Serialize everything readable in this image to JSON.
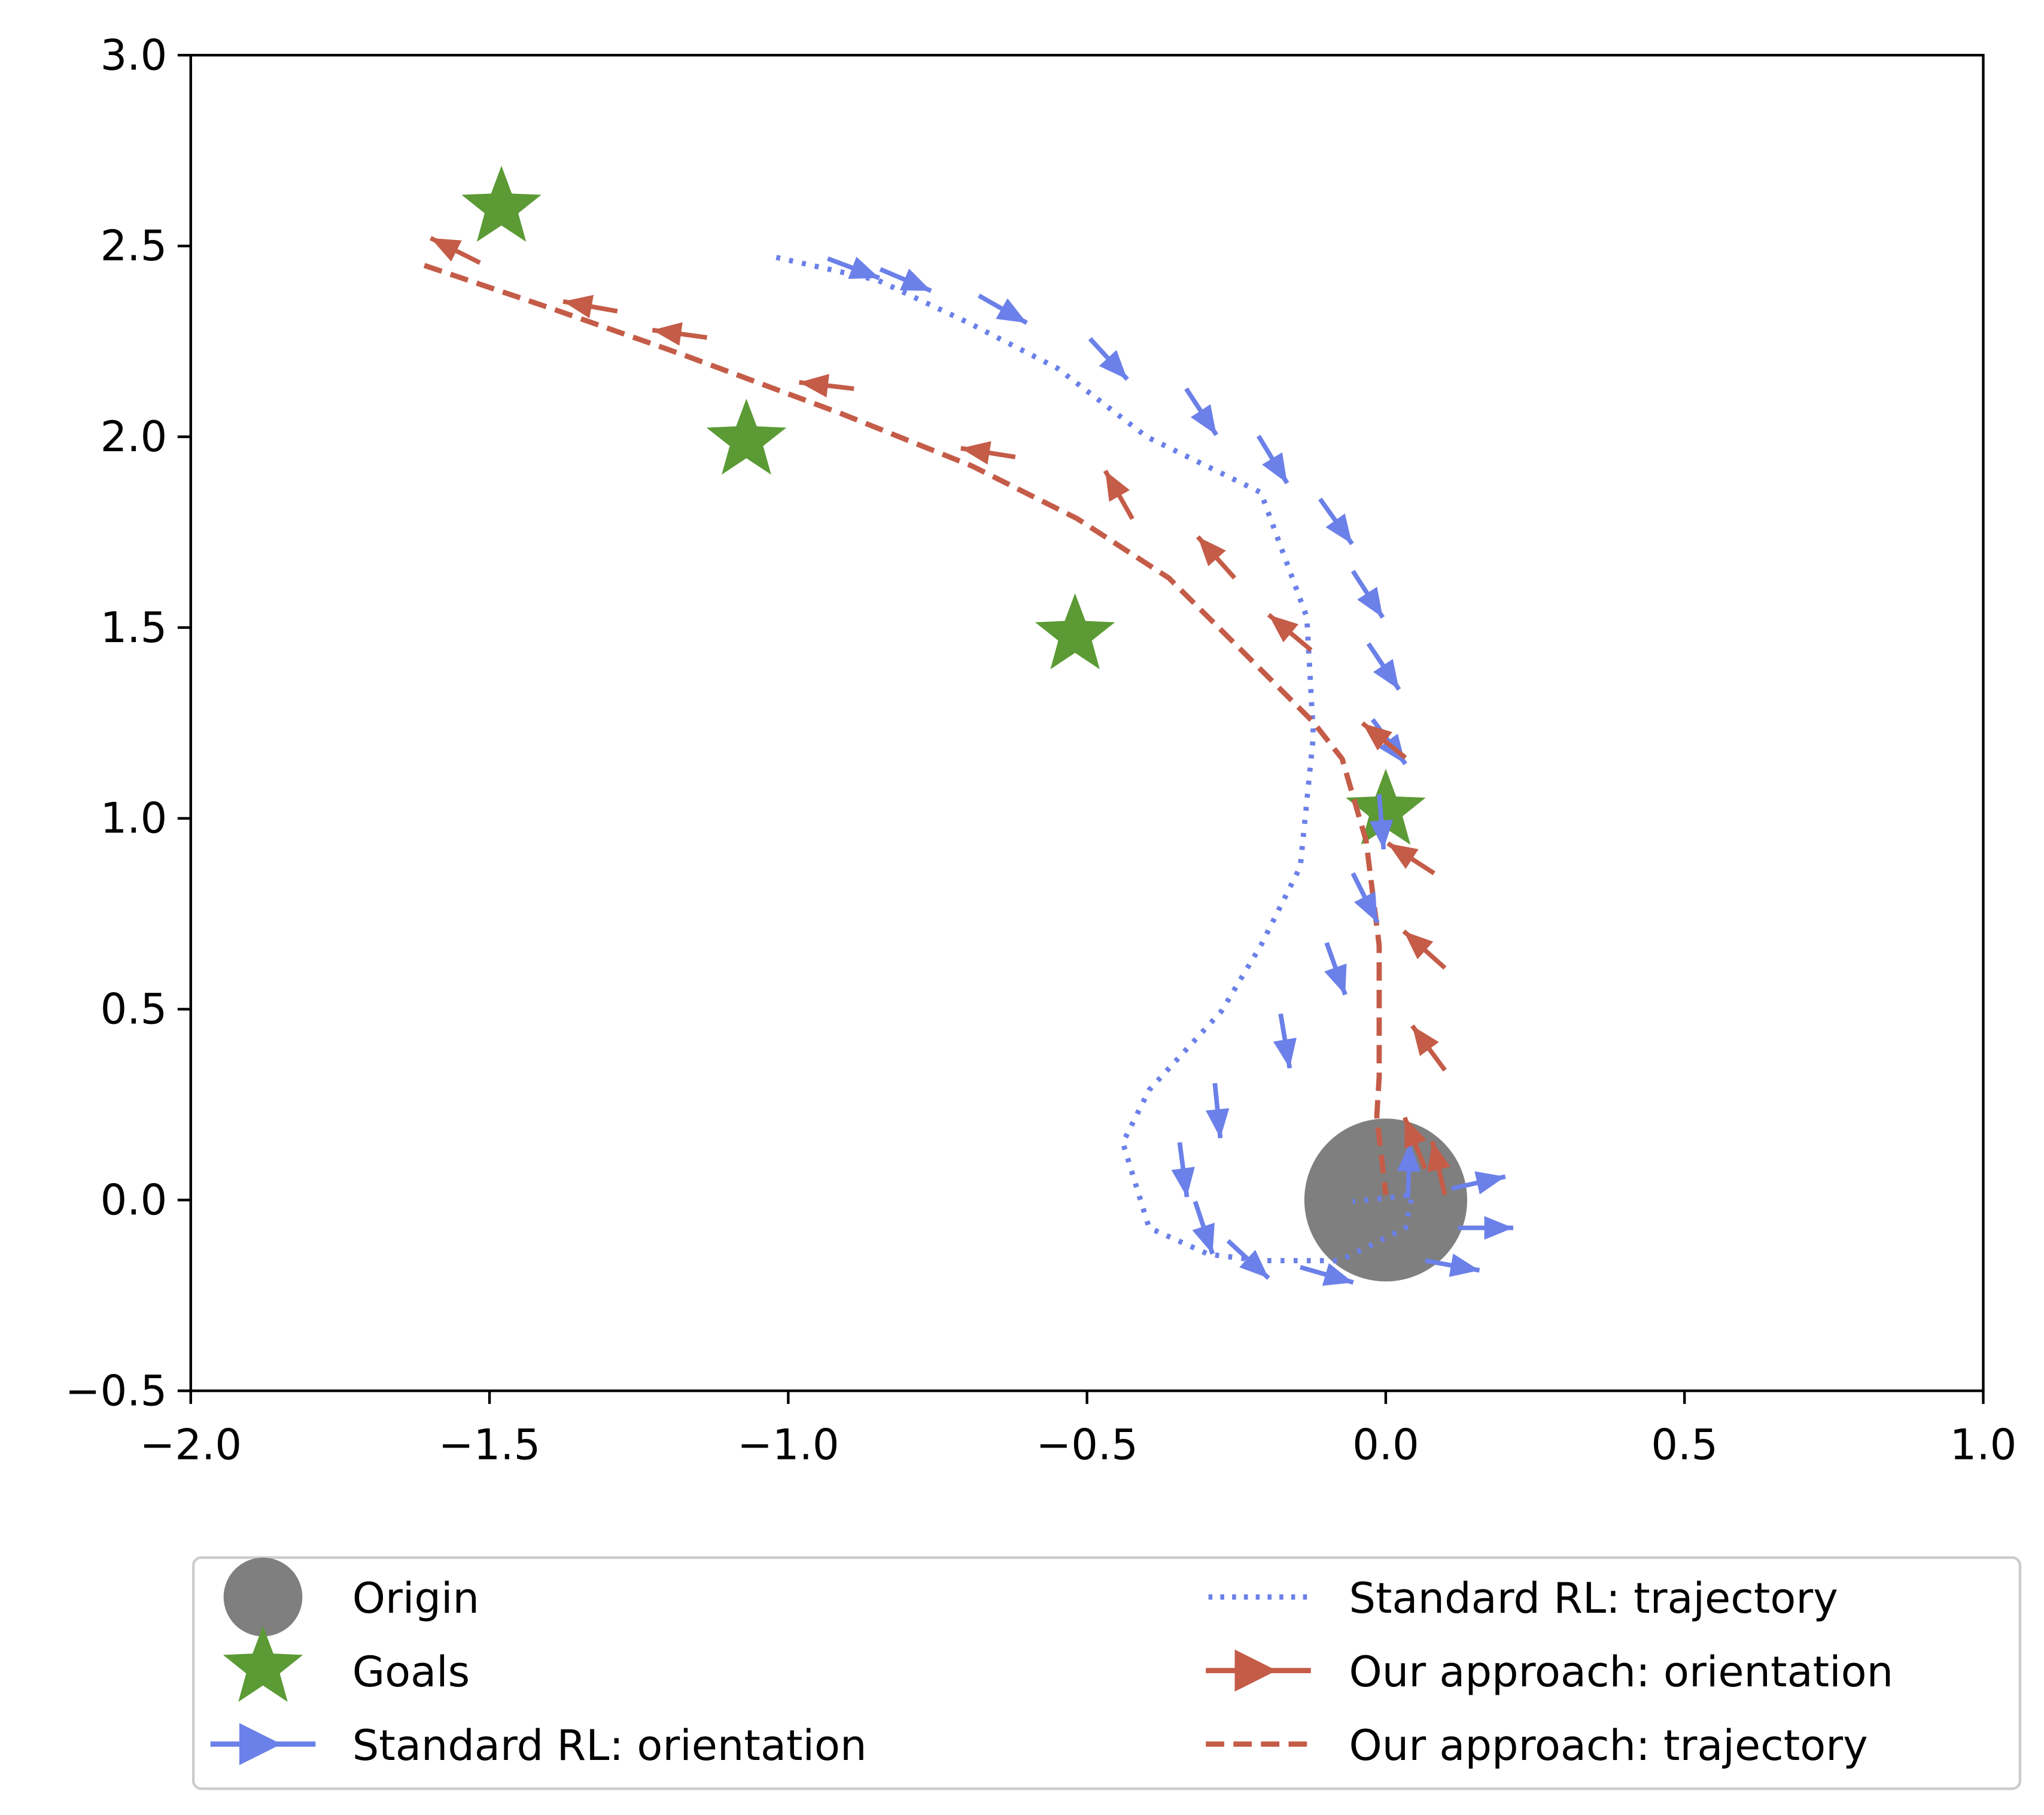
{
  "chart_data": {
    "type": "line",
    "title": "",
    "xlabel": "",
    "ylabel": "",
    "xlim": [
      -2.0,
      1.0
    ],
    "ylim": [
      -0.5,
      3.0
    ],
    "xticks": [
      "−2.0",
      "−1.5",
      "−1.0",
      "−0.5",
      "0.0",
      "0.5",
      "1.0"
    ],
    "xtick_values": [
      -2.0,
      -1.5,
      -1.0,
      -0.5,
      0.0,
      0.5,
      1.0
    ],
    "yticks": [
      "−0.5",
      "0.0",
      "0.5",
      "1.0",
      "1.5",
      "2.0",
      "2.5",
      "3.0"
    ],
    "ytick_values": [
      -0.5,
      0.0,
      0.5,
      1.0,
      1.5,
      2.0,
      2.5,
      3.0
    ],
    "grid": false,
    "legend_position": "bottom (below axes, 2 columns)",
    "colors": {
      "origin": "#7f7f7f",
      "goals": "#5b9a35",
      "standard": "#6b80e8",
      "ours": "#c45c48"
    },
    "origin": {
      "name": "Origin",
      "x": 0.0,
      "y": 0.0
    },
    "goals": {
      "name": "Goals",
      "points": [
        [
          -1.48,
          2.6
        ],
        [
          -1.07,
          1.99
        ],
        [
          -0.52,
          1.48
        ],
        [
          0.0,
          1.02
        ]
      ]
    },
    "series": [
      {
        "name": "Standard RL: trajectory",
        "style": "dotted",
        "color": "#6b80e8",
        "points": [
          [
            -1.02,
            2.47
          ],
          [
            -0.85,
            2.41
          ],
          [
            -0.7,
            2.3
          ],
          [
            -0.55,
            2.18
          ],
          [
            -0.4,
            2.0
          ],
          [
            -0.209,
            1.854
          ],
          [
            -0.132,
            1.527
          ],
          [
            -0.121,
            1.217
          ],
          [
            -0.143,
            0.873
          ],
          [
            -0.209,
            0.667
          ],
          [
            -0.275,
            0.495
          ],
          [
            -0.396,
            0.288
          ],
          [
            -0.44,
            0.15
          ],
          [
            -0.396,
            -0.073
          ],
          [
            -0.297,
            -0.142
          ],
          [
            -0.209,
            -0.159
          ],
          [
            -0.077,
            -0.159
          ],
          [
            0.033,
            -0.073
          ],
          [
            0.044,
            0.013
          ],
          [
            -0.055,
            -0.004
          ]
        ]
      },
      {
        "name": "Our approach: trajectory",
        "style": "dashed",
        "color": "#c45c48",
        "points": [
          [
            -1.609,
            2.449
          ],
          [
            -1.396,
            2.336
          ],
          [
            -1.176,
            2.215
          ],
          [
            -0.912,
            2.061
          ],
          [
            -0.692,
            1.923
          ],
          [
            -0.516,
            1.785
          ],
          [
            -0.363,
            1.63
          ],
          [
            -0.231,
            1.424
          ],
          [
            -0.121,
            1.252
          ],
          [
            -0.073,
            1.156
          ],
          [
            -0.033,
            0.942
          ],
          [
            -0.011,
            0.667
          ],
          [
            -0.011,
            0.323
          ],
          [
            -0.015,
            0.22
          ],
          [
            0.0,
            0.013
          ]
        ]
      }
    ],
    "orientations": [
      {
        "name": "Standard RL: orientation",
        "color": "#6b80e8",
        "arrows": [
          [
            -0.934,
            2.467,
            -20.6
          ],
          [
            -0.846,
            2.439,
            -23
          ],
          [
            -0.681,
            2.37,
            -29.7
          ],
          [
            -0.495,
            2.257,
            -47.4
          ],
          [
            -0.334,
            2.126,
            -56.8
          ],
          [
            -0.213,
            2.002,
            -58.7
          ],
          [
            -0.11,
            1.837,
            -54.5
          ],
          [
            -0.055,
            1.648,
            -57.2
          ],
          [
            -0.029,
            1.458,
            -56.3
          ],
          [
            -0.022,
            1.259,
            -53.5
          ],
          [
            -0.011,
            1.063,
            -85.4
          ],
          [
            -0.055,
            0.856,
            -63.4
          ],
          [
            -0.099,
            0.674,
            -70.3
          ],
          [
            -0.176,
            0.488,
            -80.5
          ],
          [
            -0.286,
            0.306,
            -84.3
          ],
          [
            -0.345,
            0.151,
            -82.4
          ],
          [
            -0.319,
            -0.004,
            -71.6
          ],
          [
            -0.264,
            -0.107,
            -42.6
          ],
          [
            -0.143,
            -0.176,
            -16.1
          ],
          [
            0.066,
            -0.159,
            -10.1
          ],
          [
            0.121,
            -0.073,
            0
          ],
          [
            0.11,
            0.03,
            12.5
          ],
          [
            0.037,
            0.006,
            88
          ]
        ]
      },
      {
        "name": "Our approach: orientation",
        "color": "#c45c48",
        "arrows": [
          [
            -1.516,
            2.456,
            153.4
          ],
          [
            -1.286,
            2.329,
            169.8
          ],
          [
            -1.136,
            2.26,
            172.2
          ],
          [
            -0.89,
            2.126,
            173.4
          ],
          [
            -0.62,
            1.947,
            170.9
          ],
          [
            -0.424,
            1.785,
            119.5
          ],
          [
            -0.253,
            1.63,
            131.8
          ],
          [
            -0.125,
            1.441,
            140.2
          ],
          [
            0.033,
            1.159,
            141.3
          ],
          [
            0.081,
            0.856,
            147.1
          ],
          [
            0.099,
            0.608,
            138.2
          ],
          [
            0.099,
            0.34,
            126.3
          ],
          [
            0.099,
            0.013,
            103.1
          ],
          [
            0.066,
            0.082,
            111.8
          ]
        ]
      }
    ]
  },
  "legend": {
    "origin": "Origin",
    "goals": "Goals",
    "standard_orientation": "Standard RL: orientation",
    "standard_trajectory": "Standard RL: trajectory",
    "ours_orientation": "Our approach: orientation",
    "ours_trajectory": "Our approach: trajectory"
  }
}
